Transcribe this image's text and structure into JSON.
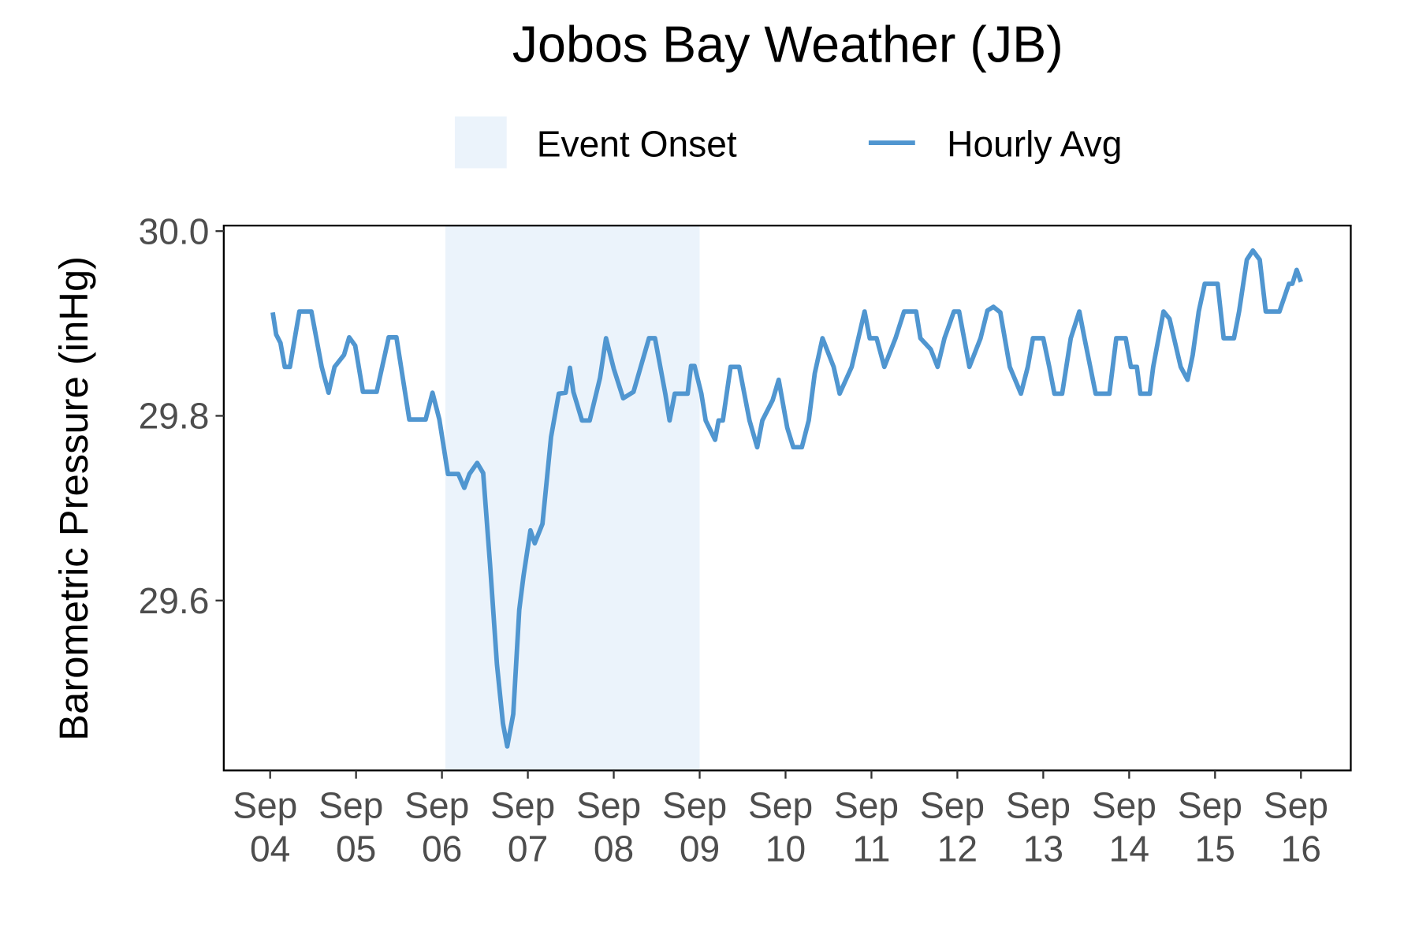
{
  "chart_data": {
    "type": "line",
    "title": "Jobos Bay Weather (JB)",
    "y_label": "Barometric Pressure (inHg)",
    "xlim": [
      3.46,
      16.58
    ],
    "xticks": [
      {
        "value": 4,
        "label": "Sep 04"
      },
      {
        "value": 5,
        "label": "Sep 05"
      },
      {
        "value": 6,
        "label": "Sep 06"
      },
      {
        "value": 7,
        "label": "Sep 07"
      },
      {
        "value": 8,
        "label": "Sep 08"
      },
      {
        "value": 9,
        "label": "Sep 09"
      },
      {
        "value": 10,
        "label": "Sep 10"
      },
      {
        "value": 11,
        "label": "Sep 11"
      },
      {
        "value": 12,
        "label": "Sep 12"
      },
      {
        "value": 13,
        "label": "Sep 13"
      },
      {
        "value": 14,
        "label": "Sep 14"
      },
      {
        "value": 15,
        "label": "Sep 15"
      },
      {
        "value": 16,
        "label": "Sep 16"
      }
    ],
    "ylim": [
      29.416,
      30.006
    ],
    "yticks": [
      29.6,
      29.8,
      {
        "value": 30.0,
        "label": "30.0"
      }
    ],
    "grid": false,
    "legend": "top",
    "shaded_regions": [
      {
        "name": "Event Onset",
        "x": [
          6.04,
          9.0
        ],
        "color": "#ebf3fb"
      }
    ],
    "series": [
      {
        "name": "Hourly Avg",
        "color": "#5096d0",
        "x": [
          4.03,
          4.07,
          4.12,
          4.17,
          4.23,
          4.34,
          4.48,
          4.6,
          4.68,
          4.75,
          4.86,
          4.92,
          4.99,
          5.08,
          5.24,
          5.38,
          5.47,
          5.62,
          5.81,
          5.89,
          5.97,
          6.07,
          6.19,
          6.26,
          6.32,
          6.41,
          6.48,
          6.56,
          6.64,
          6.71,
          6.76,
          6.83,
          6.9,
          6.95,
          7.03,
          7.08,
          7.17,
          7.27,
          7.36,
          7.44,
          7.49,
          7.53,
          7.63,
          7.72,
          7.84,
          7.91,
          8.0,
          8.11,
          8.23,
          8.41,
          8.48,
          8.6,
          8.65,
          8.71,
          8.86,
          8.9,
          8.94,
          9.02,
          9.07,
          9.18,
          9.22,
          9.27,
          9.36,
          9.46,
          9.58,
          9.67,
          9.73,
          9.85,
          9.92,
          10.02,
          10.09,
          10.19,
          10.27,
          10.34,
          10.43,
          10.56,
          10.63,
          10.77,
          10.92,
          10.98,
          11.06,
          11.15,
          11.28,
          11.38,
          11.52,
          11.57,
          11.69,
          11.77,
          11.85,
          11.96,
          12.02,
          12.14,
          12.27,
          12.35,
          12.42,
          12.5,
          12.61,
          12.74,
          12.82,
          12.88,
          13.0,
          13.07,
          13.13,
          13.22,
          13.32,
          13.42,
          13.48,
          13.61,
          13.77,
          13.85,
          13.96,
          14.02,
          14.09,
          14.13,
          14.24,
          14.28,
          14.4,
          14.47,
          14.6,
          14.68,
          14.74,
          14.81,
          14.88,
          15.03,
          15.1,
          15.22,
          15.28,
          15.37,
          15.44,
          15.52,
          15.59,
          15.75,
          15.86,
          15.9,
          15.95,
          16.0
        ],
        "values": [
          29.912,
          29.888,
          29.879,
          29.853,
          29.853,
          29.913,
          29.913,
          29.853,
          29.825,
          29.853,
          29.866,
          29.885,
          29.876,
          29.826,
          29.826,
          29.885,
          29.885,
          29.796,
          29.796,
          29.825,
          29.796,
          29.737,
          29.737,
          29.722,
          29.737,
          29.749,
          29.738,
          29.639,
          29.531,
          29.467,
          29.442,
          29.477,
          29.59,
          29.627,
          29.676,
          29.662,
          29.683,
          29.777,
          29.824,
          29.825,
          29.852,
          29.826,
          29.795,
          29.795,
          29.841,
          29.884,
          29.851,
          29.819,
          29.826,
          29.884,
          29.884,
          29.824,
          29.795,
          29.824,
          29.824,
          29.854,
          29.854,
          29.824,
          29.795,
          29.774,
          29.795,
          29.795,
          29.853,
          29.853,
          29.795,
          29.766,
          29.795,
          29.817,
          29.839,
          29.787,
          29.766,
          29.766,
          29.795,
          29.846,
          29.884,
          29.853,
          29.824,
          29.853,
          29.913,
          29.884,
          29.884,
          29.853,
          29.884,
          29.913,
          29.913,
          29.884,
          29.872,
          29.853,
          29.884,
          29.913,
          29.913,
          29.853,
          29.884,
          29.914,
          29.918,
          29.912,
          29.853,
          29.824,
          29.853,
          29.884,
          29.884,
          29.853,
          29.824,
          29.824,
          29.884,
          29.913,
          29.884,
          29.824,
          29.824,
          29.884,
          29.884,
          29.853,
          29.853,
          29.824,
          29.824,
          29.853,
          29.913,
          29.905,
          29.853,
          29.839,
          29.866,
          29.913,
          29.943,
          29.943,
          29.884,
          29.884,
          29.913,
          29.969,
          29.979,
          29.969,
          29.913,
          29.913,
          29.943,
          29.943,
          29.958,
          29.945
        ]
      }
    ]
  }
}
